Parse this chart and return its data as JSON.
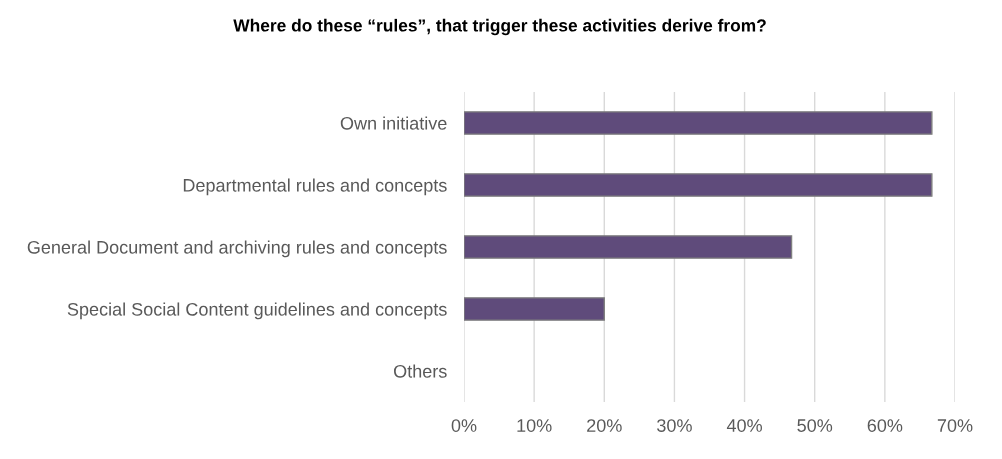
{
  "chart_data": {
    "type": "bar",
    "orientation": "horizontal",
    "title": "Where do these “rules”, that trigger these activities derive from?",
    "categories": [
      "Own initiative",
      "Departmental rules and concepts",
      "General Document and archiving rules and concepts",
      "Special Social Content guidelines and concepts",
      "Others"
    ],
    "values": [
      66.7,
      66.7,
      46.7,
      20,
      0
    ],
    "color": "#5f4b7b",
    "xlim": [
      0,
      70
    ],
    "xticks": [
      {
        "value": 0,
        "label": "0%"
      },
      {
        "value": 10,
        "label": "10%"
      },
      {
        "value": 20,
        "label": "20%"
      },
      {
        "value": 30,
        "label": "30%"
      },
      {
        "value": 40,
        "label": "40%"
      },
      {
        "value": 50,
        "label": "50%"
      },
      {
        "value": 60,
        "label": "60%"
      },
      {
        "value": 70,
        "label": "70%"
      }
    ],
    "grid": "x",
    "legend": false
  }
}
